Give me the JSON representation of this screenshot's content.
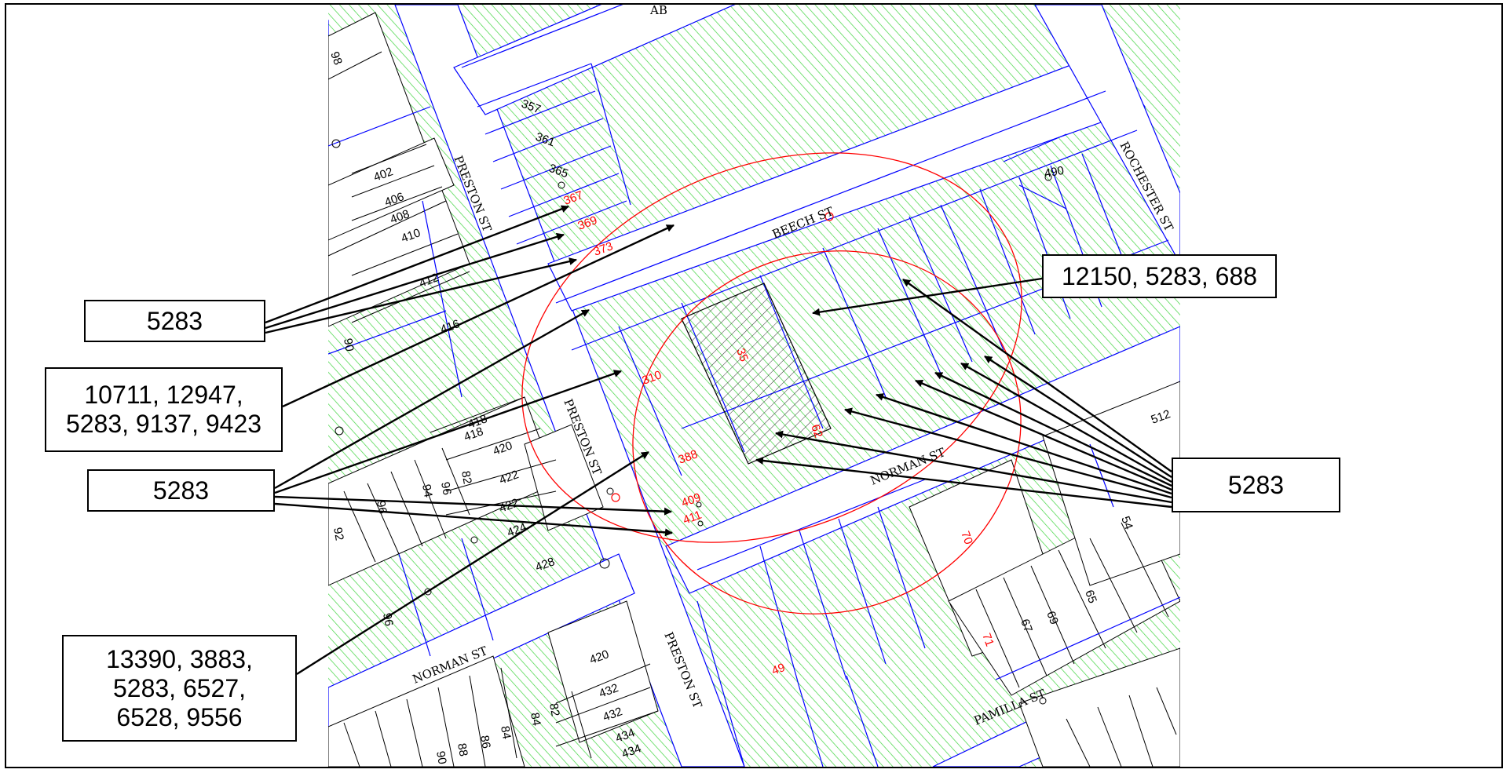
{
  "streets": {
    "preston_upper": "PRESTON ST",
    "preston_mid": "PRESTON ST",
    "preston_lower": "PRESTON ST",
    "beech": "BEECH ST",
    "norman_east": "NORMAN ST",
    "norman_west": "NORMAN ST",
    "rochester": "ROCHESTER ST",
    "pamilla": "PAMILLA ST",
    "top_partial": "AB"
  },
  "lot_numbers": {
    "black": [
      "98",
      "357",
      "361",
      "365",
      "402",
      "406",
      "408",
      "410",
      "412",
      "416",
      "418",
      "418",
      "420",
      "422",
      "422",
      "424",
      "428",
      "90",
      "94",
      "96",
      "96",
      "82",
      "92",
      "96",
      "90",
      "88",
      "86",
      "84",
      "84",
      "82",
      "512",
      "54",
      "65",
      "67",
      "69",
      "490",
      "420",
      "432",
      "432",
      "434",
      "434"
    ],
    "red": [
      "367",
      "369",
      "373",
      "310",
      "388",
      "409",
      "411",
      "71",
      "70",
      "35",
      "62",
      "49"
    ]
  },
  "callouts": [
    {
      "id": "c1",
      "text": "5283"
    },
    {
      "id": "c2",
      "text": "10711, 12947,\n5283, 9137, 9423"
    },
    {
      "id": "c3",
      "text": "5283"
    },
    {
      "id": "c4",
      "text": "13390, 3883,\n5283, 6527,\n6528, 9556"
    },
    {
      "id": "c5",
      "text": "12150, 5283, 688"
    },
    {
      "id": "c6",
      "text": "5283"
    }
  ],
  "colors": {
    "hatch_green": "#3ed43e",
    "parcel_line": "#0000ff",
    "buffer_red": "#ff0000",
    "site_hatch": "#000000"
  }
}
